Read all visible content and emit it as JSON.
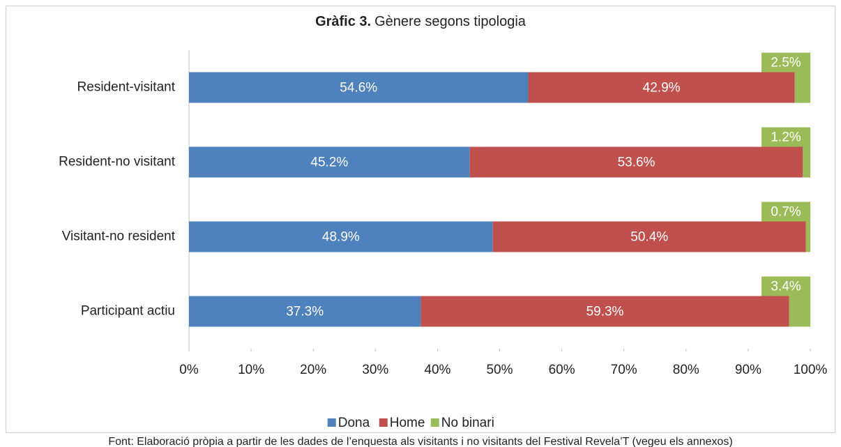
{
  "chart_data": {
    "type": "stacked_bar_horizontal",
    "title_label": "Gràfic 3.",
    "title": "Gènere segons tipologia",
    "categories": [
      "Resident-visitant",
      "Resident-no visitant",
      "Visitant-no resident",
      "Participant actiu"
    ],
    "series": [
      {
        "name": "Dona",
        "color": "#4f81bd",
        "values": [
          54.6,
          45.2,
          48.9,
          37.3
        ],
        "value_labels": [
          "54.6%",
          "45.2%",
          "48.9%",
          "37.3%"
        ]
      },
      {
        "name": "Home",
        "color": "#c0504d",
        "values": [
          42.9,
          53.6,
          50.4,
          59.3
        ],
        "value_labels": [
          "42.9%",
          "53.6%",
          "50.4%",
          "59.3%"
        ]
      },
      {
        "name": "No binari",
        "color": "#9bbb59",
        "values": [
          2.5,
          1.2,
          0.7,
          3.4
        ],
        "value_labels": [
          "2.5%",
          "1.2%",
          "0.7%",
          "3.4%"
        ]
      }
    ],
    "xlim": [
      0,
      100
    ],
    "xticks": [
      {
        "value": 0,
        "label": "0%"
      },
      {
        "value": 10,
        "label": "10%"
      },
      {
        "value": 20,
        "label": "20%"
      },
      {
        "value": 30,
        "label": "30%"
      },
      {
        "value": 40,
        "label": "40%"
      },
      {
        "value": 50,
        "label": "50%"
      },
      {
        "value": 60,
        "label": "60%"
      },
      {
        "value": 70,
        "label": "70%"
      },
      {
        "value": 80,
        "label": "80%"
      },
      {
        "value": 90,
        "label": "90%"
      },
      {
        "value": 100,
        "label": "100%"
      }
    ],
    "legend": "bottom",
    "source": "Font: Elaboració pròpia a partir de les dades de l’enquesta als visitants i no visitants del Festival Revela’T (vegeu els annexos)"
  }
}
